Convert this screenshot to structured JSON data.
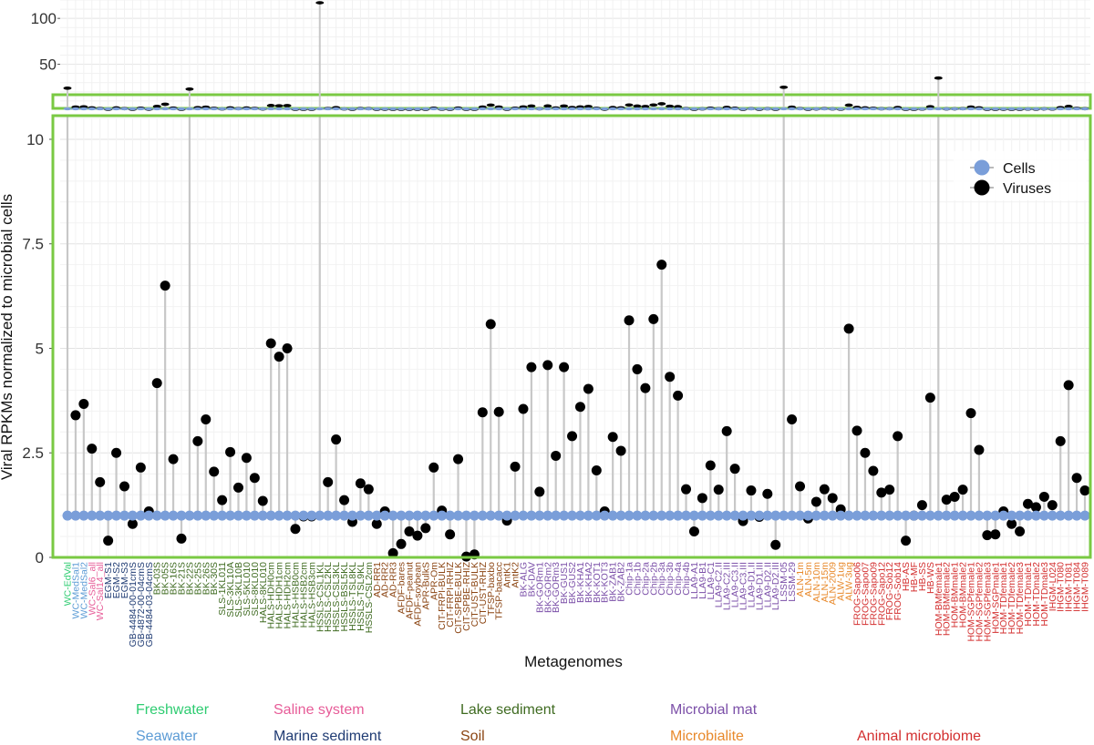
{
  "chart_data": {
    "type": "scatter",
    "subtype": "lollipop",
    "xlabel": "Metagenomes",
    "ylabel": "Viral RPKMs normalized to microbial cells",
    "upper_panel": {
      "ylim": [
        0,
        120
      ],
      "yticks": [
        50,
        100
      ]
    },
    "main_panel": {
      "ylim": [
        0,
        10.5
      ],
      "yticks": [
        0,
        2.5,
        5,
        7.5,
        10
      ]
    },
    "legend": {
      "position": "top-right",
      "items": [
        {
          "label": "Cells",
          "color": "#7A9ED9"
        },
        {
          "label": "Viruses",
          "color": "#000000"
        }
      ]
    },
    "cells_value": 1,
    "environment_colors": {
      "Freshwater": "#2ECC71",
      "Seawater": "#5B9BD5",
      "Saline system": "#E75C98",
      "Marine sediment": "#1F3B73",
      "Lake sediment": "#3F6B21",
      "Soil": "#8B4513",
      "Microbial mat": "#7B4FA8",
      "Microbialite": "#E8892B",
      "Animal microbiome": "#D32F2F"
    },
    "environment_legend": [
      [
        "Freshwater",
        "Saline system",
        "Lake sediment",
        "Microbial mat"
      ],
      [
        "Seawater",
        "Marine sediment",
        "Soil",
        "Microbialite",
        "Animal microbiome"
      ]
    ],
    "series": [
      {
        "name": "Cells",
        "values_constant": 1
      },
      {
        "name": "Viruses"
      }
    ],
    "points": [
      {
        "name": "WC-EdVal",
        "env": "Freshwater",
        "viruses": 24
      },
      {
        "name": "WC-MedSal1",
        "env": "Seawater",
        "viruses": 3.4
      },
      {
        "name": "WC-MedSal2",
        "env": "Seawater",
        "viruses": 3.67
      },
      {
        "name": "WC-Sal6_all",
        "env": "Saline system",
        "viruses": 2.6
      },
      {
        "name": "WC-Sal14_all",
        "env": "Saline system",
        "viruses": 1.8
      },
      {
        "name": "EGM-S1",
        "env": "Marine sediment",
        "viruses": 0.4
      },
      {
        "name": "EGM-S2",
        "env": "Marine sediment",
        "viruses": 2.5
      },
      {
        "name": "EGM-S3",
        "env": "Marine sediment",
        "viruses": 1.7
      },
      {
        "name": "GB-4484-00-01cmS",
        "env": "Marine sediment",
        "viruses": 0.8
      },
      {
        "name": "GB-4872-00-04cmS",
        "env": "Marine sediment",
        "viruses": 2.15
      },
      {
        "name": "GB-4484-03-04cmS",
        "env": "Marine sediment",
        "viruses": 1.1
      },
      {
        "name": "BK-03S",
        "env": "Lake sediment",
        "viruses": 4.17
      },
      {
        "name": "BK-05S",
        "env": "Lake sediment",
        "viruses": 6.5
      },
      {
        "name": "BK-16S",
        "env": "Lake sediment",
        "viruses": 2.35
      },
      {
        "name": "BK-21S",
        "env": "Lake sediment",
        "viruses": 0.45
      },
      {
        "name": "BK-22S",
        "env": "Lake sediment",
        "viruses": 23
      },
      {
        "name": "BK-25S",
        "env": "Lake sediment",
        "viruses": 2.78
      },
      {
        "name": "BK-26S",
        "env": "Lake sediment",
        "viruses": 3.3
      },
      {
        "name": "BK-30S",
        "env": "Lake sediment",
        "viruses": 2.05
      },
      {
        "name": "SLS-1KL011",
        "env": "Lake sediment",
        "viruses": 1.37
      },
      {
        "name": "SLS-3KL10A",
        "env": "Lake sediment",
        "viruses": 2.52
      },
      {
        "name": "SLS-3KL10B",
        "env": "Lake sediment",
        "viruses": 1.67
      },
      {
        "name": "SLS-5KL010",
        "env": "Lake sediment",
        "viruses": 2.38
      },
      {
        "name": "SLS-8KL010",
        "env": "Lake sediment",
        "viruses": 1.9
      },
      {
        "name": "HALS-8KL010",
        "env": "Lake sediment",
        "viruses": 1.35
      },
      {
        "name": "HALS-HDH0cm",
        "env": "Lake sediment",
        "viruses": 5.12
      },
      {
        "name": "HALS-HDH1cm",
        "env": "Lake sediment",
        "viruses": 4.8
      },
      {
        "name": "HALS-HDH2cm",
        "env": "Lake sediment",
        "viruses": 5.0
      },
      {
        "name": "HALS-HSB0cm",
        "env": "Lake sediment",
        "viruses": 0.68
      },
      {
        "name": "HALS-HSB2cm",
        "env": "Lake sediment",
        "viruses": 0.98
      },
      {
        "name": "HALS-HSB3cm",
        "env": "Lake sediment",
        "viruses": 0.98
      },
      {
        "name": "HSSLS-CSL1KL",
        "env": "Lake sediment",
        "viruses": 117
      },
      {
        "name": "HSSLS-CSL2KL",
        "env": "Lake sediment",
        "viruses": 1.8
      },
      {
        "name": "HSSLS-CSL3KL",
        "env": "Lake sediment",
        "viruses": 2.82
      },
      {
        "name": "HSSLS-BSL5KL",
        "env": "Lake sediment",
        "viruses": 1.37
      },
      {
        "name": "HSSLS-TSL8KL",
        "env": "Lake sediment",
        "viruses": 0.85
      },
      {
        "name": "HSSLS-TSL9KL",
        "env": "Lake sediment",
        "viruses": 1.77
      },
      {
        "name": "HSSLS-CSL2cm",
        "env": "Lake sediment",
        "viruses": 1.63
      },
      {
        "name": "AD-RR1",
        "env": "Soil",
        "viruses": 0.8
      },
      {
        "name": "AD-RR2",
        "env": "Soil",
        "viruses": 1.1
      },
      {
        "name": "AD-RR3",
        "env": "Soil",
        "viruses": 0.1
      },
      {
        "name": "AFDF-bares",
        "env": "Soil",
        "viruses": 0.32
      },
      {
        "name": "AFDF-peanut",
        "env": "Soil",
        "viruses": 0.62
      },
      {
        "name": "AFDF-soybean",
        "env": "Soil",
        "viruses": 0.52
      },
      {
        "name": "APR-BulkS",
        "env": "Soil",
        "viruses": 0.7
      },
      {
        "name": "APR-Om",
        "env": "Soil",
        "viruses": 2.15
      },
      {
        "name": "CIT-FRPI-BULK",
        "env": "Soil",
        "viruses": 1.12
      },
      {
        "name": "CIT-FRPI-RHIZ",
        "env": "Soil",
        "viruses": 0.55
      },
      {
        "name": "CIT-SPBE-BULK",
        "env": "Soil",
        "viruses": 2.35
      },
      {
        "name": "CIT-SPBE-RHIZ",
        "env": "Soil",
        "viruses": 0.02
      },
      {
        "name": "CIT-UST-BULK",
        "env": "Soil",
        "viruses": 0.07
      },
      {
        "name": "CIT-UST-RHIZ",
        "env": "Soil",
        "viruses": 3.47
      },
      {
        "name": "TFSP-baxbo",
        "env": "Soil",
        "viruses": 5.58
      },
      {
        "name": "TFSP-bacacc",
        "env": "Soil",
        "viruses": 3.48
      },
      {
        "name": "AntK1",
        "env": "Soil",
        "viruses": 0.88
      },
      {
        "name": "AntK2",
        "env": "Soil",
        "viruses": 2.17
      },
      {
        "name": "BK-ALG",
        "env": "Microbial mat",
        "viruses": 3.55
      },
      {
        "name": "BK-DAV",
        "env": "Microbial mat",
        "viruses": 4.55
      },
      {
        "name": "BK-GORm1",
        "env": "Microbial mat",
        "viruses": 1.57
      },
      {
        "name": "BK-GORm2",
        "env": "Microbial mat",
        "viruses": 4.6
      },
      {
        "name": "BK-GORm3",
        "env": "Microbial mat",
        "viruses": 2.43
      },
      {
        "name": "BK-GUS1",
        "env": "Microbial mat",
        "viruses": 4.55
      },
      {
        "name": "BK-GUS2",
        "env": "Microbial mat",
        "viruses": 2.9
      },
      {
        "name": "BK-KHA1",
        "env": "Microbial mat",
        "viruses": 3.6
      },
      {
        "name": "BK-KHA2",
        "env": "Microbial mat",
        "viruses": 4.03
      },
      {
        "name": "BK-KOT1",
        "env": "Microbial mat",
        "viruses": 2.08
      },
      {
        "name": "BK-KOT3",
        "env": "Microbial mat",
        "viruses": 1.1
      },
      {
        "name": "BK-ZAB1",
        "env": "Microbial mat",
        "viruses": 2.88
      },
      {
        "name": "BK-ZAB2",
        "env": "Microbial mat",
        "viruses": 2.55
      },
      {
        "name": "Chip-1a",
        "env": "Microbial mat",
        "viruses": 5.67
      },
      {
        "name": "Chip-1b",
        "env": "Microbial mat",
        "viruses": 4.5
      },
      {
        "name": "Chip-2a",
        "env": "Microbial mat",
        "viruses": 4.05
      },
      {
        "name": "Chip-2b",
        "env": "Microbial mat",
        "viruses": 5.7
      },
      {
        "name": "Chip-3a",
        "env": "Microbial mat",
        "viruses": 7.0
      },
      {
        "name": "Chip-3b",
        "env": "Microbial mat",
        "viruses": 4.32
      },
      {
        "name": "Chip-4a",
        "env": "Microbial mat",
        "viruses": 3.87
      },
      {
        "name": "Chip-4b",
        "env": "Microbial mat",
        "viruses": 1.63
      },
      {
        "name": "LLA9-A1",
        "env": "Microbial mat",
        "viruses": 0.62
      },
      {
        "name": "LLA9-B1",
        "env": "Microbial mat",
        "viruses": 1.42
      },
      {
        "name": "LLA9-C1",
        "env": "Microbial mat",
        "viruses": 2.2
      },
      {
        "name": "LLA9-C2.II",
        "env": "Microbial mat",
        "viruses": 1.62
      },
      {
        "name": "LLA9-C2.III",
        "env": "Microbial mat",
        "viruses": 3.02
      },
      {
        "name": "LLA9-C3.II",
        "env": "Microbial mat",
        "viruses": 2.12
      },
      {
        "name": "LLA9-C3.III",
        "env": "Microbial mat",
        "viruses": 0.87
      },
      {
        "name": "LLA9-D1.II",
        "env": "Microbial mat",
        "viruses": 1.6
      },
      {
        "name": "LLA9-D1.III",
        "env": "Microbial mat",
        "viruses": 0.97
      },
      {
        "name": "LLA9-D2.II",
        "env": "Microbial mat",
        "viruses": 1.52
      },
      {
        "name": "LLA9-D2.III",
        "env": "Microbial mat",
        "viruses": 0.3
      },
      {
        "name": "LSSM-05",
        "env": "Microbial mat",
        "viruses": 25
      },
      {
        "name": "LSSM-29",
        "env": "Microbial mat",
        "viruses": 3.3
      },
      {
        "name": "ALN-1m",
        "env": "Microbialite",
        "viruses": 1.7
      },
      {
        "name": "ALN-5m",
        "env": "Microbialite",
        "viruses": 0.93
      },
      {
        "name": "ALN-10m",
        "env": "Microbialite",
        "viruses": 1.33
      },
      {
        "name": "ALN-15m",
        "env": "Microbialite",
        "viruses": 1.63
      },
      {
        "name": "ALN-2009",
        "env": "Microbialite",
        "viruses": 1.42
      },
      {
        "name": "ALW-1ug",
        "env": "Microbialite",
        "viruses": 1.15
      },
      {
        "name": "ALW-3ug",
        "env": "Microbialite",
        "viruses": 5.47
      },
      {
        "name": "FROG-Sapo06",
        "env": "Animal microbiome",
        "viruses": 3.03
      },
      {
        "name": "FROG-Sapo07",
        "env": "Animal microbiome",
        "viruses": 2.5
      },
      {
        "name": "FROG-Sapo09",
        "env": "Animal microbiome",
        "viruses": 2.07
      },
      {
        "name": "FROG-Sapo12",
        "env": "Animal microbiome",
        "viruses": 1.55
      },
      {
        "name": "FROG-Sob12",
        "env": "Animal microbiome",
        "viruses": 1.62
      },
      {
        "name": "FROG-Sob14",
        "env": "Animal microbiome",
        "viruses": 2.9
      },
      {
        "name": "HB-AS",
        "env": "Animal microbiome",
        "viruses": 0.4
      },
      {
        "name": "HB-MF",
        "env": "Animal microbiome",
        "viruses": 1.0
      },
      {
        "name": "HB-SS",
        "env": "Animal microbiome",
        "viruses": 1.25
      },
      {
        "name": "HB-WS",
        "env": "Animal microbiome",
        "viruses": 3.82
      },
      {
        "name": "HOM-BMfemale1",
        "env": "Animal microbiome",
        "viruses": 35
      },
      {
        "name": "HOM-BMfemale2",
        "env": "Animal microbiome",
        "viruses": 1.38
      },
      {
        "name": "HOM-BMmale1",
        "env": "Animal microbiome",
        "viruses": 1.45
      },
      {
        "name": "HOM-BMmale2",
        "env": "Animal microbiome",
        "viruses": 1.62
      },
      {
        "name": "HOM-SGPfemale1",
        "env": "Animal microbiome",
        "viruses": 3.45
      },
      {
        "name": "HOM-SGPfemale2",
        "env": "Animal microbiome",
        "viruses": 2.57
      },
      {
        "name": "HOM-SGPfemale3",
        "env": "Animal microbiome",
        "viruses": 0.53
      },
      {
        "name": "HOM-SGPmale1",
        "env": "Animal microbiome",
        "viruses": 0.55
      },
      {
        "name": "HOM-TDfemale1",
        "env": "Animal microbiome",
        "viruses": 1.1
      },
      {
        "name": "HOM-TDfemale2",
        "env": "Animal microbiome",
        "viruses": 0.8
      },
      {
        "name": "HOM-TDfemale3",
        "env": "Animal microbiome",
        "viruses": 0.62
      },
      {
        "name": "HOM-TDmale1",
        "env": "Animal microbiome",
        "viruses": 1.28
      },
      {
        "name": "HOM-TDmale2",
        "env": "Animal microbiome",
        "viruses": 1.2
      },
      {
        "name": "HOM-TDmale3",
        "env": "Animal microbiome",
        "viruses": 1.45
      },
      {
        "name": "IHGM-L024",
        "env": "Animal microbiome",
        "viruses": 1.25
      },
      {
        "name": "IHGM-T080",
        "env": "Animal microbiome",
        "viruses": 2.78
      },
      {
        "name": "IHGM-T081",
        "env": "Animal microbiome",
        "viruses": 4.12
      },
      {
        "name": "IHGM-T084",
        "env": "Animal microbiome",
        "viruses": 1.9
      },
      {
        "name": "IHGM-T089",
        "env": "Animal microbiome",
        "viruses": 1.6
      }
    ]
  }
}
